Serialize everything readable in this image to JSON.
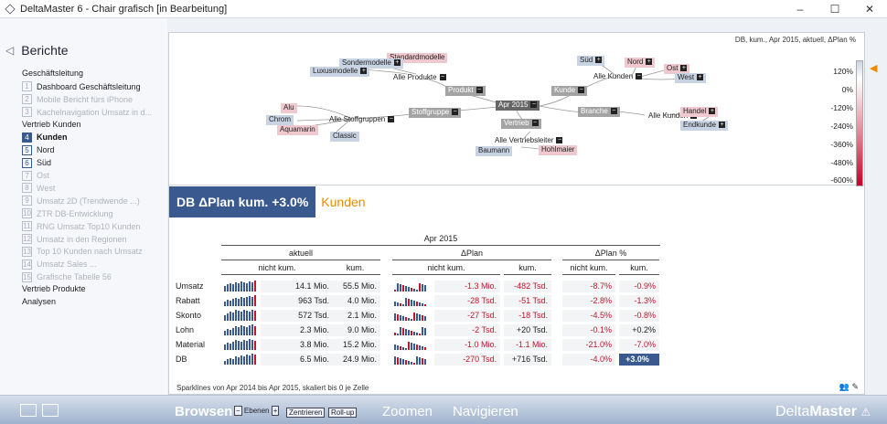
{
  "window": {
    "title": "DeltaMaster 6 - Chair grafisch [in Bearbeitung]",
    "minimize": "–",
    "maximize": "☐",
    "close": "✕"
  },
  "sidebar": {
    "heading": "Berichte",
    "groups": [
      {
        "label": "Geschäftsleitung",
        "items": [
          {
            "num": "1",
            "label": "Dashboard Geschäftsleitung"
          },
          {
            "num": "2",
            "label": "Mobile Bericht fürs iPhone"
          },
          {
            "num": "3",
            "label": "Kachelnavigation Umsatz in d..."
          }
        ]
      },
      {
        "label": "Vertrieb Kunden",
        "items": [
          {
            "num": "4",
            "label": "Kunden",
            "selected": true
          },
          {
            "num": "5",
            "label": "Nord"
          },
          {
            "num": "6",
            "label": "Süd"
          },
          {
            "num": "7",
            "label": "Ost"
          },
          {
            "num": "8",
            "label": "West"
          },
          {
            "num": "9",
            "label": "Umsatz 2D (Trendwende ...)"
          },
          {
            "num": "10",
            "label": "ZTR DB-Entwicklung"
          },
          {
            "num": "11",
            "label": "RNG Umsatz Top10 Kunden"
          },
          {
            "num": "12",
            "label": "Umsatz in den Regionen"
          },
          {
            "num": "13",
            "label": "Top 10 Kunden nach Umsatz"
          },
          {
            "num": "14",
            "label": "Umsatz Sales ..."
          },
          {
            "num": "15",
            "label": "Grafische Tabelle 56"
          }
        ]
      },
      {
        "label": "Vertrieb Produkte",
        "items": []
      },
      {
        "label": "Analysen",
        "items": []
      }
    ]
  },
  "graph": {
    "info": "DB, kum., Apr 2015, aktuell, ΔPlan %",
    "center": "Apr 2015",
    "nodes": {
      "produkt": "Produkt",
      "stoffgruppe": "Stoffgruppe",
      "vertrieb": "Vertrieb",
      "branche": "Branche",
      "kunde": "Kunde",
      "alle_produkte": "Alle Produkte",
      "sondermodelle": "Sondermodelle",
      "standardmodelle": "Standardmodelle",
      "luxusmodelle": "Luxusmodelle",
      "alle_stoffgruppen": "Alle Stoffgruppen",
      "alu": "Alu",
      "chrom": "Chrom",
      "aquamarin": "Aquamarin",
      "classic": "Classic",
      "alle_vertriebsleiter": "Alle Vertriebsleiter",
      "baumann": "Baumann",
      "hohlmaier": "Hohlmaier",
      "alle_kunden_branche": "Alle Kunden",
      "handel": "Handel",
      "endkunde": "Endkunde",
      "alle_kunden": "Alle Kunden",
      "sued": "Süd",
      "nord": "Nord",
      "ost": "Ost",
      "west": "West"
    },
    "scale": [
      "120%",
      "0%",
      "-120%",
      "-240%",
      "-360%",
      "-480%",
      "-600%"
    ]
  },
  "header": {
    "title": "DB ΔPlan kum. +3.0%",
    "dimension": "Kunden"
  },
  "table": {
    "period": "Apr 2015",
    "groups": [
      "aktuell",
      "ΔPlan",
      "ΔPlan %"
    ],
    "subcols": [
      "nicht kum.",
      "kum.",
      "nicht kum.",
      "kum.",
      "nicht kum.",
      "kum."
    ],
    "rows": [
      {
        "label": "Umsatz",
        "akt_nk": "14.1 Mio.",
        "akt_k": "55.5 Mio.",
        "dp_nk": "-1.3 Mio.",
        "dp_k": "-482 Tsd.",
        "dpp_nk": "-8.7%",
        "dpp_k": "-0.9%"
      },
      {
        "label": "Rabatt",
        "akt_nk": "963 Tsd.",
        "akt_k": "4.0 Mio.",
        "dp_nk": "-28 Tsd.",
        "dp_k": "-51 Tsd.",
        "dpp_nk": "-2.8%",
        "dpp_k": "-1.3%"
      },
      {
        "label": "Skonto",
        "akt_nk": "572 Tsd.",
        "akt_k": "2.1 Mio.",
        "dp_nk": "-27 Tsd.",
        "dp_k": "-18 Tsd.",
        "dpp_nk": "-4.5%",
        "dpp_k": "-0.8%"
      },
      {
        "label": "Lohn",
        "akt_nk": "2.3 Mio.",
        "akt_k": "9.0 Mio.",
        "dp_nk": "-2 Tsd.",
        "dp_k": "+20 Tsd.",
        "dpp_nk": "-0.1%",
        "dpp_k": "+0.2%"
      },
      {
        "label": "Material",
        "akt_nk": "3.8 Mio.",
        "akt_k": "15.2 Mio.",
        "dp_nk": "-1.0 Mio.",
        "dp_k": "-1.1 Mio.",
        "dpp_nk": "-21.0%",
        "dpp_k": "-7.0%"
      },
      {
        "label": "DB",
        "akt_nk": "6.5 Mio.",
        "akt_k": "24.9 Mio.",
        "dp_nk": "-270 Tsd.",
        "dp_k": "+716 Tsd.",
        "dpp_nk": "-4.0%",
        "dpp_k": "+3.0%"
      }
    ],
    "footnote": "Sparklines von Apr 2014 bis Apr 2015, skaliert bis 0 je Zelle"
  },
  "bottom": {
    "browsen": "Browsen",
    "ebenen": "Ebenen",
    "zentrieren": "Zentrieren",
    "rollup": "Roll-up",
    "zoomen": "Zoomen",
    "navigieren": "Navigieren",
    "brand_a": "Delta",
    "brand_b": "Master"
  },
  "colors": {
    "accent": "#3a5a8f",
    "orange": "#f08a00",
    "negative": "#c0172d"
  }
}
